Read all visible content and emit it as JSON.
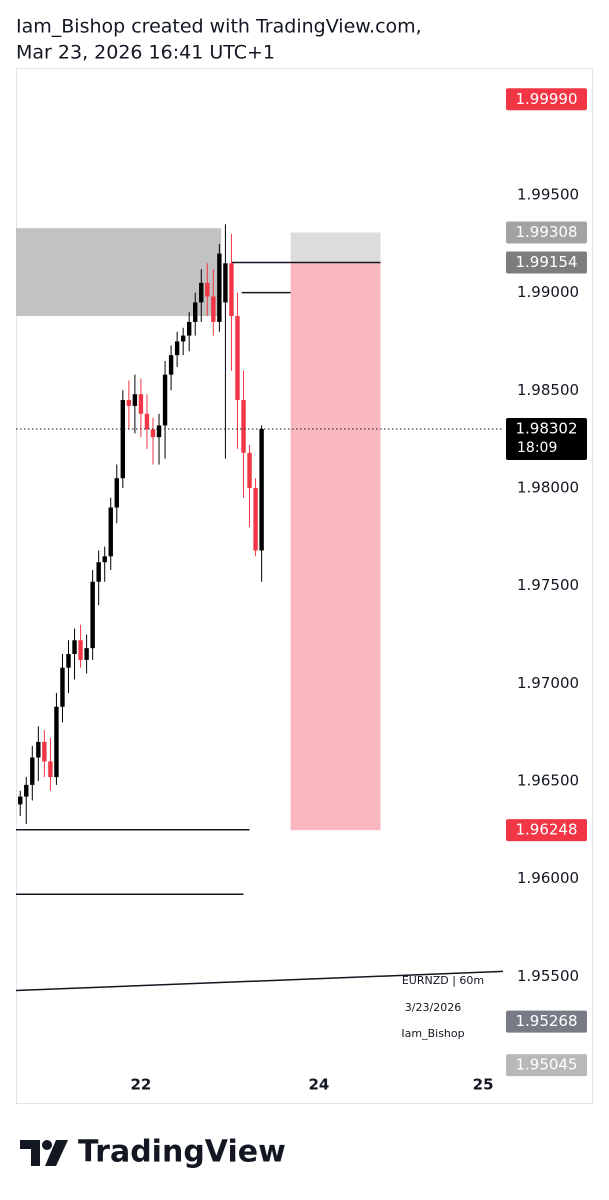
{
  "header": {
    "line1": "Iam_Bishop created with TradingView.com,",
    "line2": "Mar 23, 2026 16:41 UTC+1"
  },
  "chart_data": {
    "type": "candlestick",
    "up_color": "#000000",
    "down_color": "#f23645",
    "open": [
      1.9638,
      1.9642,
      1.9648,
      1.9662,
      1.967,
      1.966,
      1.9652,
      1.9688,
      1.9708,
      1.9715,
      1.9722,
      1.9712,
      1.9718,
      1.9752,
      1.9762,
      1.9765,
      1.979,
      1.9805,
      1.9845,
      1.9842,
      1.9848,
      1.9838,
      1.983,
      1.9826,
      1.9832,
      1.9858,
      1.9868,
      1.9875,
      1.9878,
      1.9885,
      1.9895,
      1.9905,
      1.9898,
      1.9885,
      1.9895,
      1.9915,
      1.9888,
      1.9845,
      1.9818,
      1.98,
      1.9768
    ],
    "high": [
      1.9645,
      1.9652,
      1.9668,
      1.9678,
      1.9676,
      1.9672,
      1.9695,
      1.9715,
      1.9722,
      1.9728,
      1.973,
      1.9725,
      1.9758,
      1.9768,
      1.977,
      1.9795,
      1.9812,
      1.985,
      1.9855,
      1.9858,
      1.9856,
      1.9848,
      1.9836,
      1.9838,
      1.9865,
      1.9873,
      1.988,
      1.9882,
      1.989,
      1.99,
      1.9912,
      1.9915,
      1.9912,
      1.9925,
      1.9935,
      1.993,
      1.99,
      1.986,
      1.9822,
      1.9805,
      1.9832
    ],
    "low": [
      1.9632,
      1.9628,
      1.964,
      1.965,
      1.9652,
      1.9645,
      1.9648,
      1.968,
      1.9695,
      1.9702,
      1.9708,
      1.9705,
      1.9712,
      1.974,
      1.9752,
      1.9758,
      1.9782,
      1.98,
      1.983,
      1.9828,
      1.9826,
      1.982,
      1.9812,
      1.9812,
      1.9815,
      1.985,
      1.9862,
      1.9868,
      1.987,
      1.9878,
      1.9885,
      1.9888,
      1.9878,
      1.988,
      1.9815,
      1.986,
      1.982,
      1.9795,
      1.978,
      1.9765,
      1.9752
    ],
    "close": [
      1.9642,
      1.9648,
      1.9662,
      1.967,
      1.966,
      1.9652,
      1.9688,
      1.9708,
      1.9715,
      1.9722,
      1.9712,
      1.9718,
      1.9752,
      1.9762,
      1.9765,
      1.979,
      1.9805,
      1.9845,
      1.9842,
      1.9848,
      1.9838,
      1.983,
      1.9826,
      1.9832,
      1.9858,
      1.9868,
      1.9875,
      1.9878,
      1.9885,
      1.9895,
      1.9905,
      1.9898,
      1.9885,
      1.992,
      1.9915,
      1.9888,
      1.9845,
      1.9818,
      1.98,
      1.9768,
      1.98302
    ],
    "xlim": [
      -0.7,
      80
    ],
    "xticks": [
      {
        "value": 20,
        "label": "22"
      },
      {
        "value": 49.5,
        "label": "24"
      },
      {
        "value": 76.7,
        "label": "25"
      }
    ],
    "ylim": [
      1.9501,
      2.0015
    ],
    "yticks": [
      {
        "value": 1.995,
        "label": "1.99500"
      },
      {
        "value": 1.99,
        "label": "1.99000"
      },
      {
        "value": 1.985,
        "label": "1.98500"
      },
      {
        "value": 1.98,
        "label": "1.98000"
      },
      {
        "value": 1.975,
        "label": "1.97500"
      },
      {
        "value": 1.97,
        "label": "1.97000"
      },
      {
        "value": 1.965,
        "label": "1.96500"
      },
      {
        "value": 1.96,
        "label": "1.96000"
      },
      {
        "value": 1.955,
        "label": "1.95500"
      }
    ],
    "price_labels": [
      {
        "value": 1.9999,
        "label": "1.99990",
        "color": "#f23645"
      },
      {
        "value": 1.99308,
        "label": "1.99308",
        "color": "#a3a3a3"
      },
      {
        "value": 1.99154,
        "label": "1.99154",
        "color": "#7d7d7d"
      },
      {
        "value": 1.96248,
        "label": "1.96248",
        "color": "#f23645"
      },
      {
        "value": 1.95268,
        "label": "1.95268",
        "color": "#787b86"
      },
      {
        "value": 1.95045,
        "label": "1.95045",
        "color": "#b8b8b8"
      }
    ],
    "last_price": {
      "value": 1.98302,
      "label": "1.98302",
      "countdown": "18:09"
    },
    "zone": {
      "x0": -0.7,
      "x1": 33.3,
      "top": 1.9933,
      "bottom": 1.9888,
      "color": "#c2c2c2"
    },
    "position": {
      "x0": 44.8,
      "x1": 59.7,
      "entry": 1.99154,
      "stop": 1.99308,
      "target": 1.96248,
      "stop_color": "#dcdcdc",
      "target_color": "#f9b8c0"
    },
    "lines": [
      {
        "x0": 35,
        "x1": 59.7,
        "y0": 1.99154,
        "y1": 1.99154
      },
      {
        "x0": 36.7,
        "x1": 44.8,
        "y0": 1.99,
        "y1": 1.99
      },
      {
        "x0": -0.7,
        "x1": 38,
        "y0": 1.9625,
        "y1": 1.9625
      },
      {
        "x0": -0.7,
        "x1": 37,
        "y0": 1.9592,
        "y1": 1.9592
      },
      {
        "x0": -0.7,
        "x1": 80,
        "y0": 1.95427,
        "y1": 1.95525
      }
    ]
  },
  "watermark": {
    "symbol": "EURNZD  |  60m",
    "date": "3/23/2026",
    "author": "Iam_Bishop"
  },
  "footer": {
    "brand": "TradingView"
  }
}
